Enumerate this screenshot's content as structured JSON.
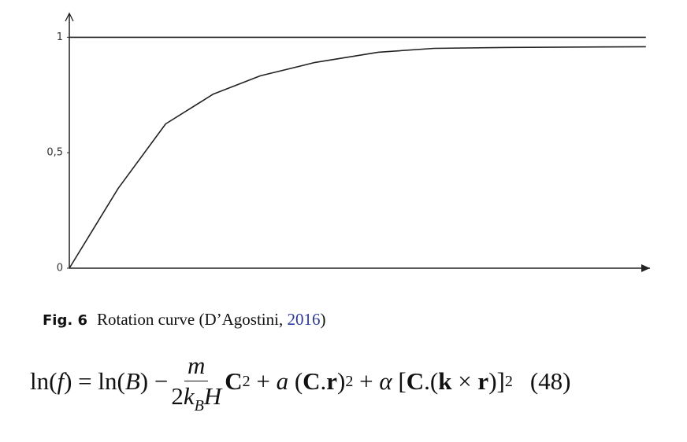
{
  "chart_data": {
    "type": "line",
    "x": [
      0,
      0.084,
      0.166,
      0.248,
      0.329,
      0.423,
      0.532,
      0.628,
      0.763,
      0.993
    ],
    "series": [
      {
        "color": "#222222",
        "values": [
          0,
          0.345,
          0.625,
          0.754,
          0.833,
          0.891,
          0.935,
          0.952,
          0.956,
          0.959
        ]
      },
      {
        "color": "#222222",
        "values": [
          1,
          1,
          1,
          1,
          1,
          1,
          1,
          1,
          1,
          1
        ]
      }
    ],
    "xlim": [
      0,
      1
    ],
    "ylim": [
      0,
      1.1
    ],
    "yticks": [
      0,
      {
        "value": 0.5,
        "label": "0,5"
      },
      1
    ],
    "grid": false
  },
  "caption": {
    "label": "Fig. 6",
    "text": "Rotation curve (D’Agostini, ",
    "year": "2016",
    "close": ")"
  },
  "equation": {
    "parts": [
      "ln(",
      "f",
      ") = ln(",
      "B",
      ") −",
      "m",
      "2",
      "k",
      "B",
      "H",
      "C",
      "2",
      " + ",
      "a",
      " (",
      "C",
      ".",
      "r",
      ")",
      "2",
      " + ",
      "α",
      " [",
      "C",
      ".(",
      "k",
      " × ",
      "r",
      ")]",
      "2"
    ],
    "number": "(48)"
  }
}
